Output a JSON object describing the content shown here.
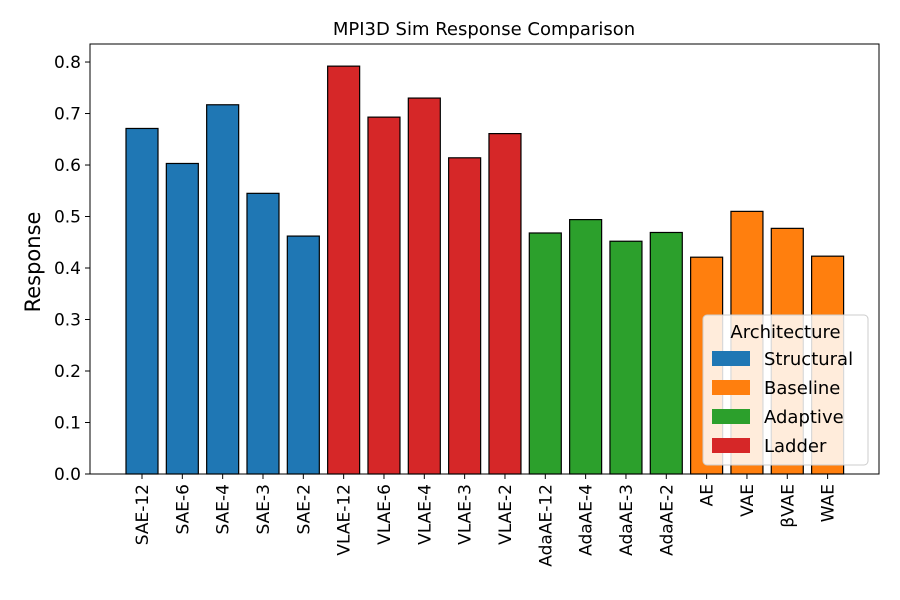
{
  "chart_data": {
    "type": "bar",
    "title": "MPI3D Sim Response Comparison",
    "xlabel": "",
    "ylabel": "Response",
    "ylim": [
      0,
      0.835
    ],
    "yticks": [
      "0.0",
      "0.1",
      "0.2",
      "0.3",
      "0.4",
      "0.5",
      "0.6",
      "0.7",
      "0.8"
    ],
    "categories": [
      "SAE-12",
      "SAE-6",
      "SAE-4",
      "SAE-3",
      "SAE-2",
      "VLAE-12",
      "VLAE-6",
      "VLAE-4",
      "VLAE-3",
      "VLAE-2",
      "AdaAE-12",
      "AdaAE-4",
      "AdaAE-3",
      "AdaAE-2",
      "AE",
      "VAE",
      "βVAE",
      "WAE"
    ],
    "values": [
      0.671,
      0.603,
      0.717,
      0.545,
      0.462,
      0.792,
      0.693,
      0.73,
      0.614,
      0.661,
      0.468,
      0.494,
      0.452,
      0.469,
      0.421,
      0.51,
      0.477,
      0.423
    ],
    "groups": [
      "Structural",
      "Structural",
      "Structural",
      "Structural",
      "Structural",
      "Ladder",
      "Ladder",
      "Ladder",
      "Ladder",
      "Ladder",
      "Adaptive",
      "Adaptive",
      "Adaptive",
      "Adaptive",
      "Baseline",
      "Baseline",
      "Baseline",
      "Baseline"
    ],
    "legend": {
      "title": "Architecture",
      "placement": "lower-right",
      "entries": [
        {
          "name": "Structural",
          "color": "#1f77b4"
        },
        {
          "name": "Baseline",
          "color": "#ff7f0e"
        },
        {
          "name": "Adaptive",
          "color": "#2ca02c"
        },
        {
          "name": "Ladder",
          "color": "#d62728"
        }
      ]
    },
    "grid": false
  }
}
